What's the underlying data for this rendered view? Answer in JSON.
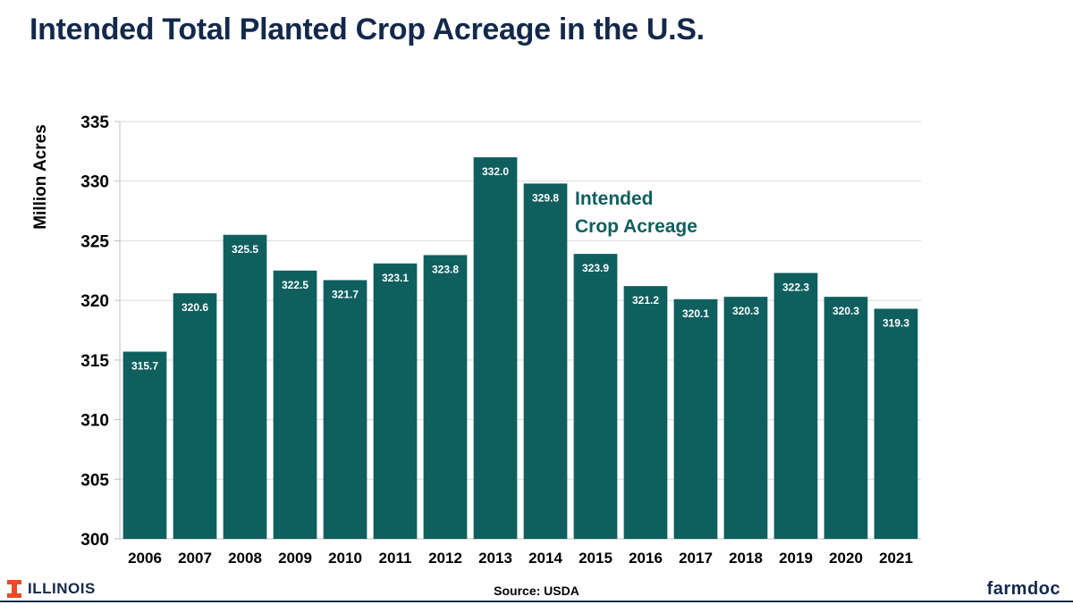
{
  "title": "Intended Total Planted Crop Acreage in the U.S.",
  "chart_data": {
    "type": "bar",
    "categories": [
      "2006",
      "2007",
      "2008",
      "2009",
      "2010",
      "2011",
      "2012",
      "2013",
      "2014",
      "2015",
      "2016",
      "2017",
      "2018",
      "2019",
      "2020",
      "2021"
    ],
    "values": [
      315.7,
      320.6,
      325.5,
      322.5,
      321.7,
      323.1,
      323.8,
      332.0,
      329.8,
      323.9,
      321.2,
      320.1,
      320.3,
      322.3,
      320.3,
      319.3
    ],
    "ylabel": "Million Acres",
    "xlabel": "",
    "ylim": [
      300,
      335
    ],
    "yticks": [
      300,
      305,
      310,
      315,
      320,
      325,
      330,
      335
    ],
    "grid": true,
    "annotation": "Intended Crop Acreage",
    "colors": {
      "bar": "#0f5f5f",
      "annotation": "#0f5f5f",
      "grid": "#d9d9d9",
      "axis": "#bfbfbf"
    }
  },
  "footer": {
    "logo_text": "ILLINOIS",
    "source": "Source: USDA",
    "brand": "farmdoc",
    "logo_color": "#e84a27",
    "brand_color": "#13294b"
  }
}
